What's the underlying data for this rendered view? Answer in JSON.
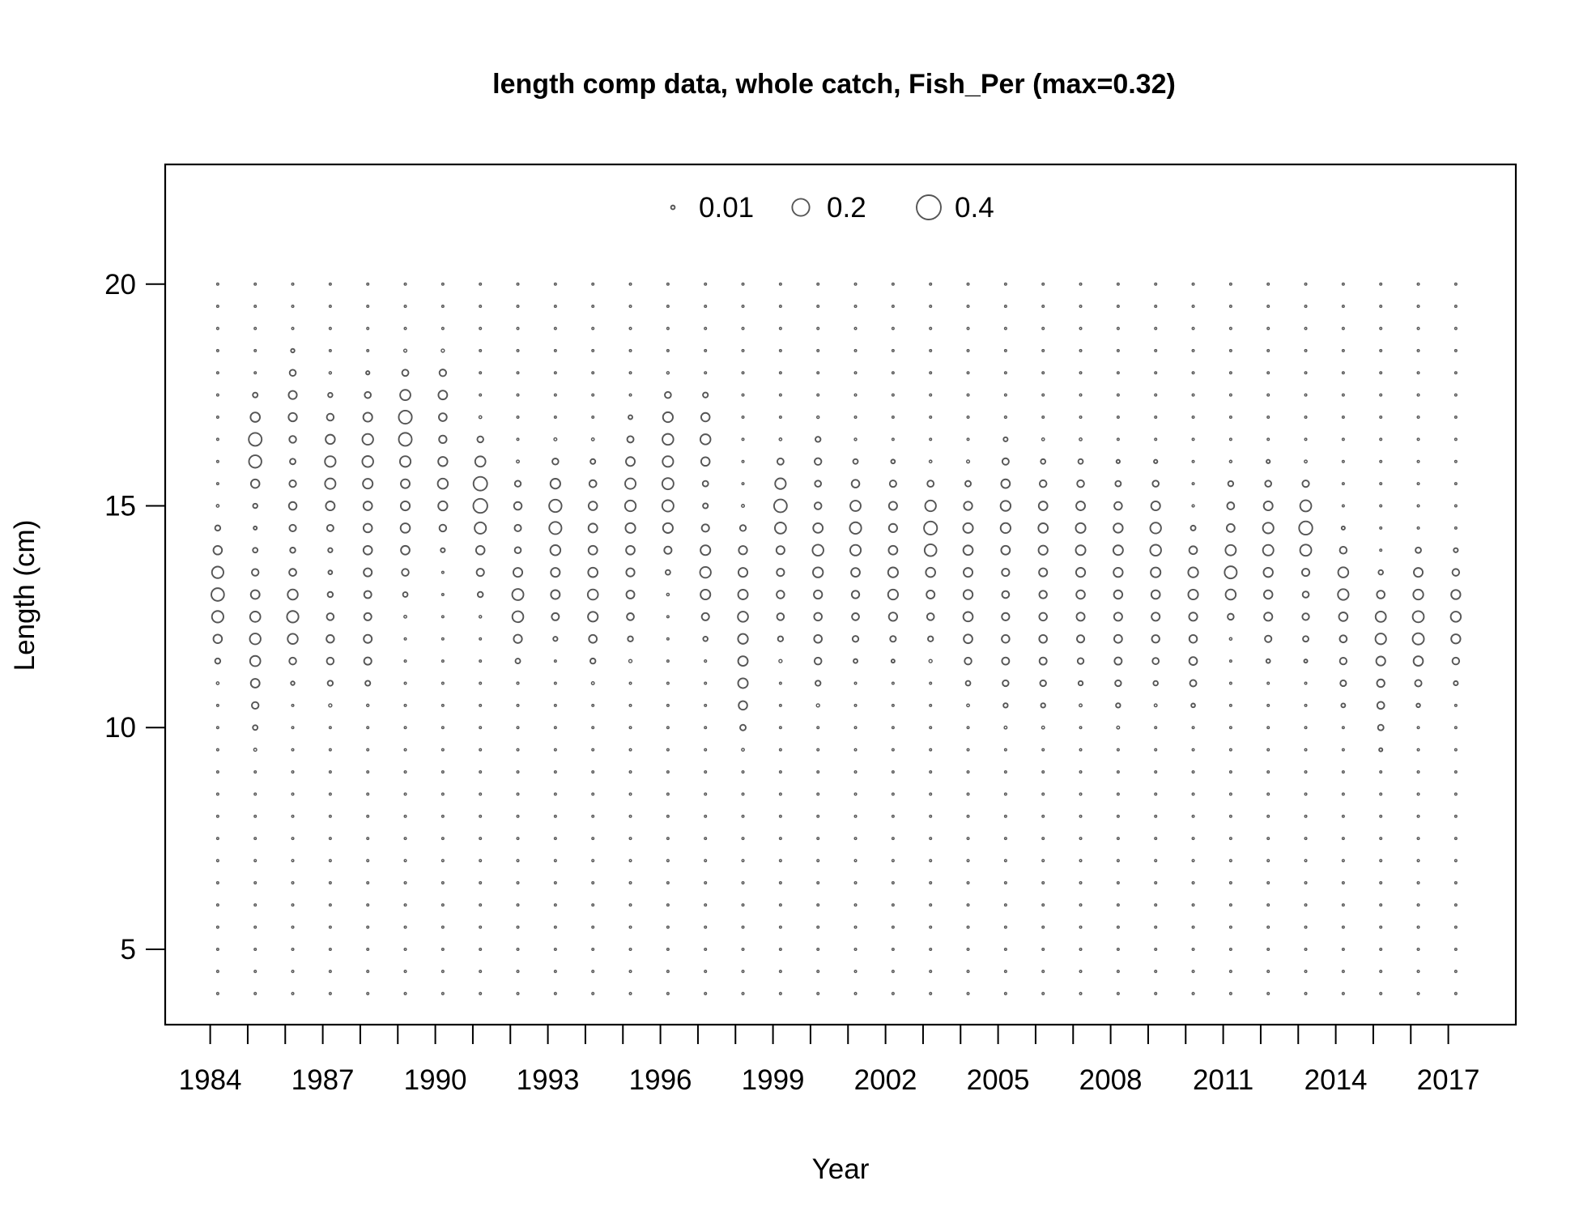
{
  "chart_data": {
    "type": "scatter",
    "variant": "bubble",
    "title": "length comp data, whole catch, Fish_Per (max=0.32)",
    "xlabel": "Year",
    "ylabel": "Length (cm)",
    "xlim": [
      1982.8,
      2018.8
    ],
    "ylim": [
      3.3,
      22.7
    ],
    "x_ticks": [
      1984,
      1985,
      1986,
      1987,
      1988,
      1989,
      1990,
      1991,
      1992,
      1993,
      1994,
      1995,
      1996,
      1997,
      1998,
      1999,
      2000,
      2001,
      2002,
      2003,
      2004,
      2005,
      2006,
      2007,
      2008,
      2009,
      2010,
      2011,
      2012,
      2013,
      2014,
      2015,
      2016,
      2017
    ],
    "x_tick_labels": [
      "1984",
      "1987",
      "1990",
      "1993",
      "1996",
      "1999",
      "2002",
      "2005",
      "2008",
      "2011",
      "2014",
      "2017"
    ],
    "y_ticks": [
      5,
      10,
      15,
      20
    ],
    "y_tick_labels": [
      "5",
      "10",
      "15",
      "20"
    ],
    "legend": {
      "placement": "top-center",
      "entries": [
        {
          "label": "0.01",
          "value": 0.01
        },
        {
          "label": "0.2",
          "value": 0.2
        },
        {
          "label": "0.4",
          "value": 0.4
        }
      ]
    },
    "length_bins": [
      4,
      4.5,
      5,
      5.5,
      6,
      6.5,
      7,
      7.5,
      8,
      8.5,
      9,
      9.5,
      10,
      10.5,
      11,
      11.5,
      12,
      12.5,
      13,
      13.5,
      14,
      14.5,
      15,
      15.5,
      16,
      16.5,
      17,
      17.5,
      18,
      18.5,
      19,
      19.5,
      20
    ],
    "years": [
      1984.2,
      1985.2,
      1986.2,
      1987.2,
      1988.2,
      1989.2,
      1990.2,
      1991.2,
      1992.2,
      1993.2,
      1994.2,
      1995.2,
      1996.2,
      1997.2,
      1998.2,
      1999.2,
      2000.2,
      2001.2,
      2002.2,
      2003.2,
      2004.2,
      2005.2,
      2006.2,
      2007.2,
      2008.2,
      2009.2,
      2010.2,
      2011.2,
      2012.2,
      2013.2,
      2014.2,
      2015.2,
      2016.2,
      2017.2
    ],
    "series": [
      {
        "values": [
          {
            "mode": 13.0,
            "sd": 0.8,
            "peak": 0.11
          }
        ]
      },
      {
        "values": [
          {
            "mode": 12.0,
            "sd": 1.1,
            "peak": 0.08
          },
          {
            "mode": 16.3,
            "sd": 0.6,
            "peak": 0.12
          }
        ]
      },
      {
        "values": [
          {
            "mode": 12.5,
            "sd": 0.7,
            "peak": 0.09
          },
          {
            "mode": 17.2,
            "sd": 0.7,
            "peak": 0.05
          },
          {
            "mode": 15.0,
            "sd": 0.6,
            "peak": 0.04
          }
        ]
      },
      {
        "values": [
          {
            "mode": 15.8,
            "sd": 0.9,
            "peak": 0.08
          },
          {
            "mode": 12.0,
            "sd": 0.8,
            "peak": 0.04
          }
        ]
      },
      {
        "values": [
          {
            "mode": 16.3,
            "sd": 0.8,
            "peak": 0.08
          },
          {
            "mode": 14.0,
            "sd": 1.0,
            "peak": 0.05
          },
          {
            "mode": 11.8,
            "sd": 0.6,
            "peak": 0.04
          }
        ]
      },
      {
        "values": [
          {
            "mode": 16.8,
            "sd": 0.7,
            "peak": 0.12
          },
          {
            "mode": 14.5,
            "sd": 0.9,
            "peak": 0.06
          }
        ]
      },
      {
        "values": [
          {
            "mode": 15.5,
            "sd": 0.8,
            "peak": 0.07
          },
          {
            "mode": 17.5,
            "sd": 0.5,
            "peak": 0.05
          }
        ]
      },
      {
        "values": [
          {
            "mode": 15.2,
            "sd": 0.7,
            "peak": 0.14
          },
          {
            "mode": 13.5,
            "sd": 0.5,
            "peak": 0.03
          }
        ]
      },
      {
        "values": [
          {
            "mode": 12.8,
            "sd": 0.7,
            "peak": 0.09
          },
          {
            "mode": 15.0,
            "sd": 0.5,
            "peak": 0.04
          }
        ]
      },
      {
        "values": [
          {
            "mode": 14.8,
            "sd": 0.7,
            "peak": 0.11
          },
          {
            "mode": 13.0,
            "sd": 0.6,
            "peak": 0.05
          }
        ]
      },
      {
        "values": [
          {
            "mode": 12.8,
            "sd": 0.8,
            "peak": 0.07
          },
          {
            "mode": 14.8,
            "sd": 0.8,
            "peak": 0.05
          }
        ]
      },
      {
        "values": [
          {
            "mode": 15.2,
            "sd": 0.9,
            "peak": 0.08
          },
          {
            "mode": 13.0,
            "sd": 0.8,
            "peak": 0.04
          }
        ]
      },
      {
        "values": [
          {
            "mode": 15.2,
            "sd": 0.9,
            "peak": 0.09
          },
          {
            "mode": 16.8,
            "sd": 0.5,
            "peak": 0.06
          }
        ]
      },
      {
        "values": [
          {
            "mode": 13.5,
            "sd": 0.8,
            "peak": 0.08
          },
          {
            "mode": 16.5,
            "sd": 0.6,
            "peak": 0.07
          }
        ]
      },
      {
        "values": [
          {
            "mode": 12.5,
            "sd": 0.9,
            "peak": 0.07
          },
          {
            "mode": 10.8,
            "sd": 0.6,
            "peak": 0.05
          },
          {
            "mode": 14.0,
            "sd": 0.5,
            "peak": 0.03
          }
        ]
      },
      {
        "values": [
          {
            "mode": 15.0,
            "sd": 0.6,
            "peak": 0.11
          },
          {
            "mode": 13.0,
            "sd": 0.8,
            "peak": 0.04
          }
        ]
      },
      {
        "values": [
          {
            "mode": 14.0,
            "sd": 0.7,
            "peak": 0.08
          },
          {
            "mode": 12.0,
            "sd": 0.8,
            "peak": 0.04
          },
          {
            "mode": 16.0,
            "sd": 0.5,
            "peak": 0.03
          }
        ]
      },
      {
        "values": [
          {
            "mode": 14.5,
            "sd": 0.8,
            "peak": 0.09
          },
          {
            "mode": 12.5,
            "sd": 0.7,
            "peak": 0.03
          }
        ]
      },
      {
        "values": [
          {
            "mode": 13.2,
            "sd": 0.8,
            "peak": 0.07
          },
          {
            "mode": 15.0,
            "sd": 0.6,
            "peak": 0.04
          }
        ]
      },
      {
        "values": [
          {
            "mode": 14.5,
            "sd": 0.6,
            "peak": 0.11
          },
          {
            "mode": 13.0,
            "sd": 0.8,
            "peak": 0.04
          }
        ]
      },
      {
        "values": [
          {
            "mode": 12.5,
            "sd": 0.9,
            "peak": 0.06
          },
          {
            "mode": 14.5,
            "sd": 0.7,
            "peak": 0.06
          }
        ]
      },
      {
        "values": [
          {
            "mode": 14.8,
            "sd": 0.9,
            "peak": 0.07
          },
          {
            "mode": 12.0,
            "sd": 1.0,
            "peak": 0.04
          }
        ]
      },
      {
        "values": [
          {
            "mode": 14.5,
            "sd": 0.9,
            "peak": 0.06
          },
          {
            "mode": 12.0,
            "sd": 1.0,
            "peak": 0.04
          }
        ]
      },
      {
        "values": [
          {
            "mode": 14.5,
            "sd": 0.9,
            "peak": 0.06
          },
          {
            "mode": 12.5,
            "sd": 1.0,
            "peak": 0.04
          }
        ]
      },
      {
        "values": [
          {
            "mode": 14.2,
            "sd": 0.9,
            "peak": 0.06
          },
          {
            "mode": 12.0,
            "sd": 1.0,
            "peak": 0.04
          }
        ]
      },
      {
        "values": [
          {
            "mode": 14.3,
            "sd": 0.8,
            "peak": 0.08
          },
          {
            "mode": 12.3,
            "sd": 0.9,
            "peak": 0.04
          }
        ]
      },
      {
        "values": [
          {
            "mode": 13.3,
            "sd": 0.7,
            "peak": 0.07
          },
          {
            "mode": 11.5,
            "sd": 0.6,
            "peak": 0.04
          }
        ]
      },
      {
        "values": [
          {
            "mode": 13.5,
            "sd": 0.6,
            "peak": 0.1
          },
          {
            "mode": 15.0,
            "sd": 0.5,
            "peak": 0.03
          }
        ]
      },
      {
        "values": [
          {
            "mode": 14.3,
            "sd": 0.8,
            "peak": 0.08
          },
          {
            "mode": 12.5,
            "sd": 0.6,
            "peak": 0.04
          }
        ]
      },
      {
        "values": [
          {
            "mode": 14.5,
            "sd": 0.6,
            "peak": 0.12
          },
          {
            "mode": 12.5,
            "sd": 0.6,
            "peak": 0.03
          }
        ]
      },
      {
        "values": [
          {
            "mode": 13.2,
            "sd": 0.6,
            "peak": 0.08
          },
          {
            "mode": 11.5,
            "sd": 0.7,
            "peak": 0.03
          }
        ]
      },
      {
        "values": [
          {
            "mode": 12.2,
            "sd": 0.7,
            "peak": 0.08
          },
          {
            "mode": 10.5,
            "sd": 0.6,
            "peak": 0.03
          }
        ]
      },
      {
        "values": [
          {
            "mode": 12.2,
            "sd": 0.8,
            "peak": 0.09
          },
          {
            "mode": 13.5,
            "sd": 0.4,
            "peak": 0.03
          }
        ]
      },
      {
        "values": [
          {
            "mode": 12.5,
            "sd": 0.8,
            "peak": 0.07
          }
        ]
      }
    ]
  }
}
